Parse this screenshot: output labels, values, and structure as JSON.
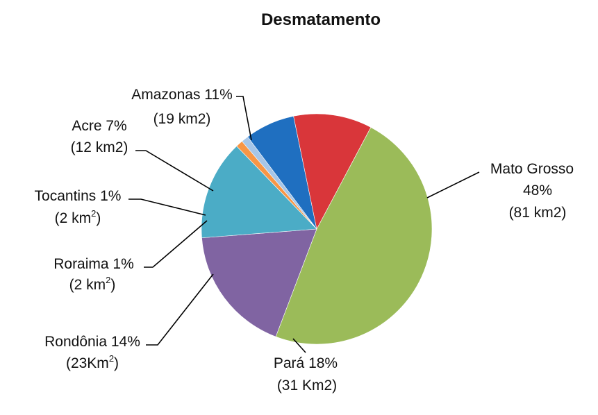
{
  "chart_data": {
    "type": "pie",
    "title": "Desmatamento",
    "slices": [
      {
        "name": "Mato Grosso",
        "value": 48,
        "pct_label": "48%",
        "area_label": "(81 km2)",
        "color": "#9bbb59"
      },
      {
        "name": "Pará",
        "value": 18,
        "pct_label": "18%",
        "area_label": "(31 Km2)",
        "color": "#8064a2"
      },
      {
        "name": "Rondônia",
        "value": 14,
        "pct_label": "14%",
        "area_label": "(23Km",
        "area_sup": "2",
        "area_suffix": ")",
        "color": "#4bacc6"
      },
      {
        "name": "Roraima",
        "value": 1,
        "pct_label": "1%",
        "area_label": "(2 km",
        "area_sup": "2",
        "area_suffix": ")",
        "color": "#f79646"
      },
      {
        "name": "Tocantins",
        "value": 1,
        "pct_label": "1%",
        "area_label": "(2 km",
        "area_sup": "2",
        "area_suffix": ")",
        "color": "#a6c6e8"
      },
      {
        "name": "Acre",
        "value": 7,
        "pct_label": "7%",
        "area_label": "(12 km2)",
        "color": "#1f6fc0"
      },
      {
        "name": "Amazonas",
        "value": 11,
        "pct_label": "11%",
        "area_label": "(19 km2)",
        "color": "#d9363a"
      }
    ]
  }
}
